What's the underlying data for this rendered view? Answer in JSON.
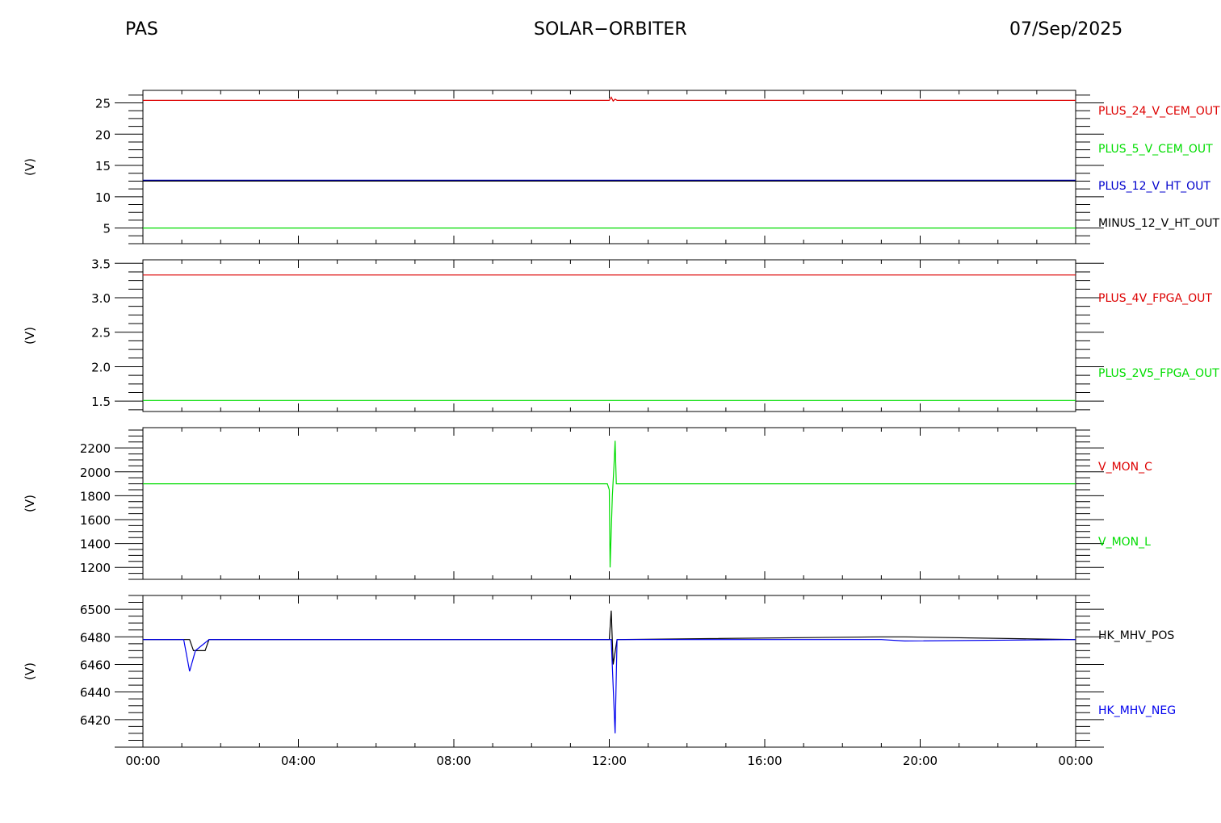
{
  "header": {
    "left": "PAS",
    "center": "SOLAR−ORBITER",
    "right": "07/Sep/2025"
  },
  "chart_data": [
    {
      "type": "line",
      "ylabel": "(V)",
      "ylim": [
        2.5,
        27
      ],
      "yticks": [
        5,
        10,
        15,
        20,
        25
      ],
      "xlim": [
        0,
        24
      ],
      "xtick_labels": [
        "00:00",
        "04:00",
        "08:00",
        "12:00",
        "16:00",
        "20:00",
        "00:00"
      ],
      "series": [
        {
          "name": "PLUS_24_V_CEM_OUT",
          "color": "#dd0000",
          "x": [
            0,
            12.0,
            12.05,
            12.1,
            12.15,
            12.2,
            24
          ],
          "y": [
            25.4,
            25.4,
            25.9,
            25.3,
            25.6,
            25.4,
            25.4
          ]
        },
        {
          "name": "PLUS_5_V_CEM_OUT",
          "color": "#00dd00",
          "x": [
            0,
            24
          ],
          "y": [
            5.0,
            5.0
          ]
        },
        {
          "name": "PLUS_12_V_HT_OUT",
          "color": "#0000cc",
          "x": [
            0,
            24
          ],
          "y": [
            12.6,
            12.6
          ]
        },
        {
          "name": "MINUS_12_V_HT_OUT",
          "color": "#000000",
          "x": [
            0,
            24
          ],
          "y": [
            12.5,
            12.5
          ]
        }
      ]
    },
    {
      "type": "line",
      "ylabel": "(V)",
      "ylim": [
        1.35,
        3.55
      ],
      "yticks": [
        1.5,
        2.0,
        2.5,
        3.0,
        3.5
      ],
      "ytick_labels": [
        "1.5",
        "2.0",
        "2.5",
        "3.0",
        "3.5"
      ],
      "xlim": [
        0,
        24
      ],
      "series": [
        {
          "name": "PLUS_4V_FPGA_OUT",
          "color": "#dd0000",
          "x": [
            0,
            24
          ],
          "y": [
            3.33,
            3.33
          ]
        },
        {
          "name": "PLUS_2V5_FPGA_OUT",
          "color": "#00dd00",
          "x": [
            0,
            24
          ],
          "y": [
            1.51,
            1.51
          ]
        }
      ]
    },
    {
      "type": "line",
      "ylabel": "(V)",
      "ylim": [
        1100,
        2370
      ],
      "yticks": [
        1200,
        1400,
        1600,
        1800,
        2000,
        2200
      ],
      "xlim": [
        0,
        24
      ],
      "series": [
        {
          "name": "V_MON_C",
          "color": "#dd0000",
          "x": [],
          "y": []
        },
        {
          "name": "V_MON_L",
          "color": "#00dd00",
          "x": [
            0,
            11.95,
            12.0,
            12.02,
            12.05,
            12.08,
            12.12,
            12.15,
            12.18,
            12.22,
            24
          ],
          "y": [
            1900,
            1900,
            1850,
            1200,
            1500,
            1800,
            2050,
            2260,
            1900,
            1900,
            1900
          ]
        }
      ]
    },
    {
      "type": "line",
      "ylabel": "(V)",
      "ylim": [
        6400,
        6510
      ],
      "yticks": [
        6420,
        6440,
        6460,
        6480,
        6500
      ],
      "xlim": [
        0,
        24
      ],
      "xtick_labels": [
        "00:00",
        "04:00",
        "08:00",
        "12:00",
        "16:00",
        "20:00",
        "00:00"
      ],
      "series": [
        {
          "name": "HK_MHV_POS",
          "color": "#000000",
          "x": [
            0,
            1.2,
            1.3,
            1.6,
            1.7,
            12.0,
            12.05,
            12.1,
            12.2,
            19.0,
            19.6,
            24
          ],
          "y": [
            6478,
            6478,
            6470,
            6470,
            6478,
            6478,
            6499,
            6460,
            6478,
            6480,
            6480,
            6478
          ]
        },
        {
          "name": "HK_MHV_NEG",
          "color": "#0000ee",
          "x": [
            0,
            1.05,
            1.2,
            1.35,
            1.7,
            12.05,
            12.15,
            12.2,
            19.0,
            19.6,
            24
          ],
          "y": [
            6478,
            6478,
            6455,
            6470,
            6478,
            6478,
            6410,
            6478,
            6478,
            6477,
            6478
          ]
        }
      ]
    }
  ]
}
